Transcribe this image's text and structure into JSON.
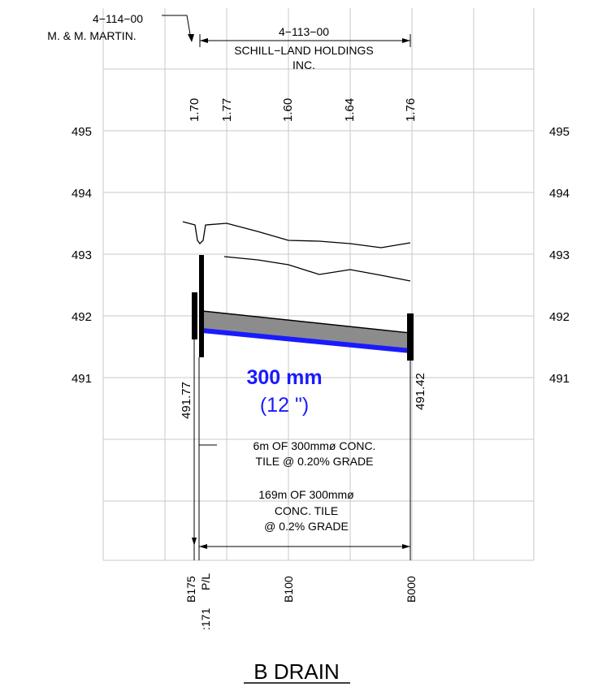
{
  "elevation_labels": [
    "495",
    "494",
    "493",
    "492",
    "491"
  ],
  "parcels": {
    "left_number": "4−114−00",
    "left_owner": "M. & M. MARTIN.",
    "right_number": "4−113−00",
    "right_owner_line1": "SCHILL−LAND HOLDINGS",
    "right_owner_line2": "INC."
  },
  "ground_elevations": [
    "1.70",
    "1.77",
    "1.60",
    "1.64",
    "1.76"
  ],
  "inverts": {
    "upstream": "491.77",
    "downstream": "491.42"
  },
  "pipe": {
    "size_metric": "300 mm",
    "size_imperial": "(12 \")",
    "color": "#1a1aff"
  },
  "notes": {
    "short_line1": "6m OF 300mmø CONC.",
    "short_line2": "TILE @ 0.20% GRADE",
    "long_line1": "169m OF 300mmø",
    "long_line2": "CONC. TILE",
    "long_line3": "@ 0.2% GRADE"
  },
  "stations": {
    "b175": "B175",
    "pl": "P/L",
    "b171": ":171",
    "b100": "B100",
    "b000": "B000"
  },
  "title": "B DRAIN"
}
